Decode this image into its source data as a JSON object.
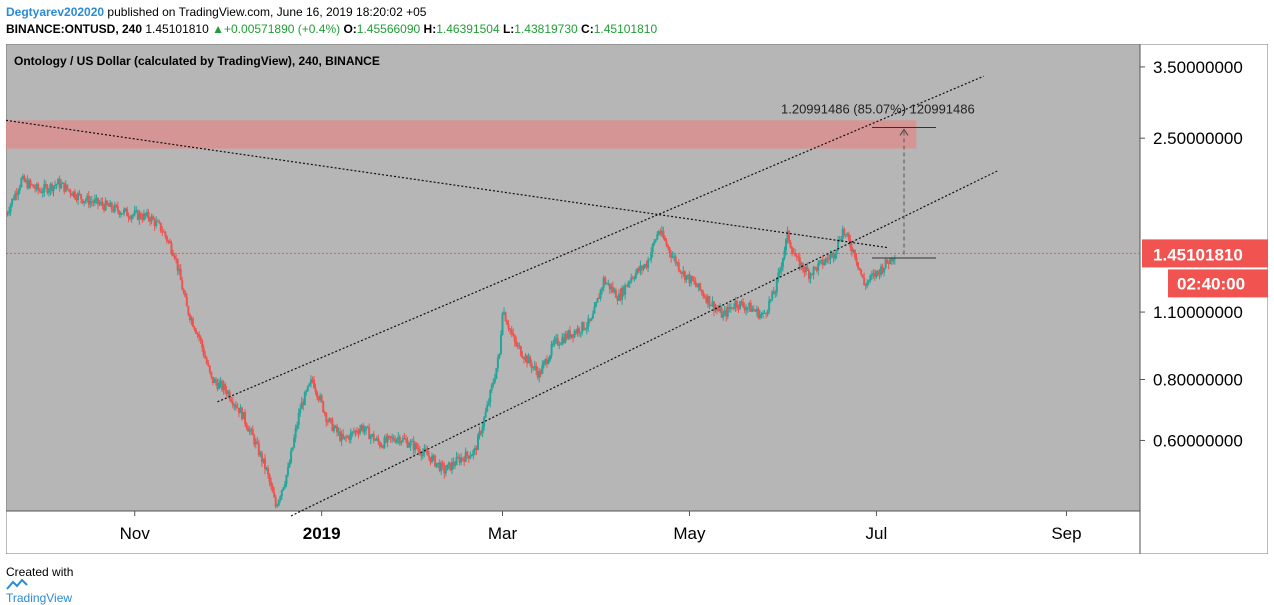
{
  "header": {
    "author": "Degtyarev202020",
    "published_text": "published on TradingView.com, June 16, 2019 18:20:02 +05",
    "symbol": "BINANCE:ONTUSD, 240",
    "last": "1.45101810",
    "change_arrow": "▲",
    "change": "+0.00571890 (+0.4%)",
    "o_label": "O:",
    "o_value": "1.45566090",
    "h_label": "H:",
    "h_value": "1.46391504",
    "l_label": "L:",
    "l_value": "1.43819730",
    "c_label": "C:",
    "c_value": "1.45101810"
  },
  "footer": {
    "created_with": "Created with",
    "brand": "TradingView",
    "brand_icon": "tradingview-logo-icon"
  },
  "colors": {
    "pane_bg": "#b6b6b6",
    "up": "#25a69a",
    "down": "#ef5350",
    "zone": "#e08a8a",
    "price_badge": "#f05350",
    "axis_text": "#000000"
  },
  "chart_data": {
    "type": "candlestick",
    "title": "Ontology / US Dollar (calculated by TradingView), 240, BINANCE",
    "y_scale": "log",
    "ylim": [
      0.43,
      3.9
    ],
    "y_ticks": [
      {
        "value": 3.5,
        "label": "3.50000000"
      },
      {
        "value": 2.5,
        "label": "2.50000000"
      },
      {
        "value": 1.1,
        "label": "1.10000000"
      },
      {
        "value": 0.8,
        "label": "0.80000000"
      },
      {
        "value": 0.6,
        "label": "0.60000000"
      }
    ],
    "x_range": [
      "2018-09-20",
      "2019-09-25"
    ],
    "x_ticks": [
      {
        "date": "2018-11-01",
        "label": "Nov",
        "bold": false
      },
      {
        "date": "2019-01-01",
        "label": "2019",
        "bold": true
      },
      {
        "date": "2019-03-01",
        "label": "Mar",
        "bold": false
      },
      {
        "date": "2019-05-01",
        "label": "May",
        "bold": false
      },
      {
        "date": "2019-07-01",
        "label": "Jul",
        "bold": false
      },
      {
        "date": "2019-09-01",
        "label": "Sep",
        "bold": false
      }
    ],
    "price_path": [
      [
        "2018-09-20",
        1.75
      ],
      [
        "2018-09-25",
        2.05
      ],
      [
        "2018-10-01",
        1.95
      ],
      [
        "2018-10-07",
        2.02
      ],
      [
        "2018-10-15",
        1.88
      ],
      [
        "2018-10-22",
        1.82
      ],
      [
        "2018-10-30",
        1.75
      ],
      [
        "2018-11-06",
        1.72
      ],
      [
        "2018-11-10",
        1.62
      ],
      [
        "2018-11-14",
        1.45
      ],
      [
        "2018-11-18",
        1.12
      ],
      [
        "2018-11-22",
        0.98
      ],
      [
        "2018-11-26",
        0.8
      ],
      [
        "2018-12-01",
        0.76
      ],
      [
        "2018-12-06",
        0.68
      ],
      [
        "2018-12-10",
        0.6
      ],
      [
        "2018-12-14",
        0.52
      ],
      [
        "2018-12-17",
        0.44
      ],
      [
        "2018-12-21",
        0.52
      ],
      [
        "2018-12-25",
        0.7
      ],
      [
        "2018-12-29",
        0.8
      ],
      [
        "2019-01-03",
        0.66
      ],
      [
        "2019-01-08",
        0.6
      ],
      [
        "2019-01-14",
        0.64
      ],
      [
        "2019-01-20",
        0.59
      ],
      [
        "2019-01-26",
        0.61
      ],
      [
        "2019-02-01",
        0.58
      ],
      [
        "2019-02-06",
        0.55
      ],
      [
        "2019-02-10",
        0.52
      ],
      [
        "2019-02-15",
        0.55
      ],
      [
        "2019-02-20",
        0.57
      ],
      [
        "2019-02-24",
        0.7
      ],
      [
        "2019-02-28",
        0.9
      ],
      [
        "2019-03-01",
        1.12
      ],
      [
        "2019-03-05",
        0.95
      ],
      [
        "2019-03-09",
        0.88
      ],
      [
        "2019-03-13",
        0.82
      ],
      [
        "2019-03-18",
        0.95
      ],
      [
        "2019-03-24",
        1.0
      ],
      [
        "2019-03-30",
        1.05
      ],
      [
        "2019-04-03",
        1.28
      ],
      [
        "2019-04-08",
        1.18
      ],
      [
        "2019-04-12",
        1.3
      ],
      [
        "2019-04-17",
        1.38
      ],
      [
        "2019-04-21",
        1.62
      ],
      [
        "2019-04-25",
        1.45
      ],
      [
        "2019-04-29",
        1.32
      ],
      [
        "2019-05-03",
        1.25
      ],
      [
        "2019-05-08",
        1.15
      ],
      [
        "2019-05-12",
        1.08
      ],
      [
        "2019-05-16",
        1.15
      ],
      [
        "2019-05-21",
        1.12
      ],
      [
        "2019-05-25",
        1.08
      ],
      [
        "2019-05-29",
        1.22
      ],
      [
        "2019-06-02",
        1.58
      ],
      [
        "2019-06-05",
        1.4
      ],
      [
        "2019-06-09",
        1.32
      ],
      [
        "2019-06-13",
        1.38
      ],
      [
        "2019-06-17",
        1.45
      ],
      [
        "2019-06-20",
        1.62
      ],
      [
        "2019-06-24",
        1.45
      ],
      [
        "2019-06-27",
        1.25
      ],
      [
        "2019-07-01",
        1.32
      ],
      [
        "2019-07-05",
        1.4
      ],
      [
        "2019-07-07",
        1.451
      ]
    ],
    "last_price": {
      "value": 1.4510181,
      "label": "1.45101810",
      "countdown": "02:40:00"
    },
    "resistance_zone": {
      "x": [
        "2018-09-20",
        "2019-07-14"
      ],
      "y": [
        2.38,
        2.72
      ]
    },
    "trendlines": [
      {
        "name": "down-trendline",
        "p1": [
          "2018-09-20",
          2.72
        ],
        "p2": [
          "2019-07-05",
          1.49
        ]
      },
      {
        "name": "upper-channel",
        "p1": [
          "2018-11-28",
          0.72
        ],
        "p2": [
          "2019-08-05",
          3.35
        ]
      },
      {
        "name": "lower-channel",
        "p1": [
          "2018-12-22",
          0.42
        ],
        "p2": [
          "2019-08-10",
          2.15
        ]
      }
    ],
    "measure": {
      "x": "2019-07-10",
      "from": 1.42,
      "to": 2.63,
      "label": "1.20991486 (85.07%) 120991486"
    }
  }
}
